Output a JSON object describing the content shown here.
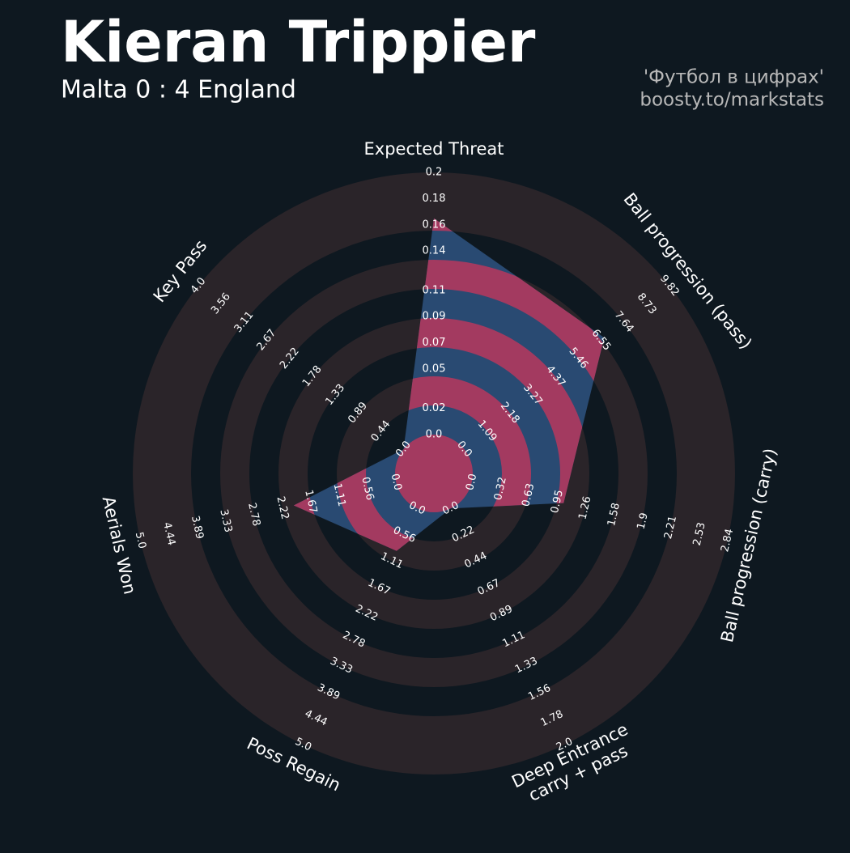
{
  "chart_data": {
    "type": "radar",
    "title": "Kieran Trippier",
    "subtitle": "Malta 0 : 4 England",
    "credits": [
      "'Футбол в цифрах'",
      "boosty.to/markstats"
    ],
    "colors": {
      "background": "#0e1820",
      "rings": "#2a2429",
      "polygon": "#294a72",
      "highlight": "#a33a60",
      "text": "#ffffff",
      "credits": "#b8b8b8"
    },
    "params": [
      {
        "label": [
          "Expected Threat"
        ],
        "lim": [
          0,
          0.2
        ],
        "value": 0.165,
        "ticks": [
          {
            "value": 0,
            "label": "0.0"
          },
          0.02,
          0.05,
          0.07,
          0.09,
          0.11,
          0.14,
          0.16,
          0.18,
          0.2
        ]
      },
      {
        "label": [
          "Ball progression (pass)"
        ],
        "lim": [
          0,
          9.82
        ],
        "value": 6.7,
        "ticks": [
          {
            "value": 0,
            "label": "0.0"
          },
          1.09,
          2.18,
          3.27,
          4.37,
          5.46,
          6.55,
          7.64,
          8.73,
          9.82
        ]
      },
      {
        "label": [
          "Ball progression (carry)"
        ],
        "lim": [
          0,
          2.84
        ],
        "value": 1.02,
        "ticks": [
          {
            "value": 0,
            "label": "0.0"
          },
          0.32,
          0.63,
          0.95,
          1.26,
          1.58,
          1.9,
          2.21,
          2.53,
          2.84
        ]
      },
      {
        "label": [
          "Deep Entrance",
          "carry + pass"
        ],
        "lim": [
          0,
          2
        ],
        "value": 0,
        "ticks": [
          {
            "value": 0,
            "label": "0.0"
          },
          0.22,
          0.44,
          0.67,
          0.89,
          1.11,
          1.33,
          1.56,
          1.78,
          {
            "value": 2,
            "label": "2.0"
          }
        ]
      },
      {
        "label": [
          "Poss Regain"
        ],
        "lim": [
          0,
          5
        ],
        "value": 0.9,
        "ticks": [
          {
            "value": 0,
            "label": "0.0"
          },
          0.56,
          1.11,
          1.67,
          2.22,
          2.78,
          3.33,
          3.89,
          4.44,
          {
            "value": 5,
            "label": "5.0"
          }
        ]
      },
      {
        "label": [
          "Aerials Won"
        ],
        "lim": [
          0,
          5
        ],
        "value": 2.0,
        "ticks": [
          {
            "value": 0,
            "label": "0.0"
          },
          0.56,
          1.11,
          1.67,
          2.22,
          2.78,
          3.33,
          3.89,
          4.44,
          {
            "value": 5,
            "label": "5.0"
          }
        ]
      },
      {
        "label": [
          "Key Pass"
        ],
        "lim": [
          0,
          4
        ],
        "value": 0,
        "ticks": [
          {
            "value": 0,
            "label": "0.0"
          },
          0.44,
          0.89,
          1.33,
          1.78,
          2.22,
          2.67,
          3.11,
          3.56,
          {
            "value": 4,
            "label": "4.0"
          }
        ]
      }
    ]
  }
}
